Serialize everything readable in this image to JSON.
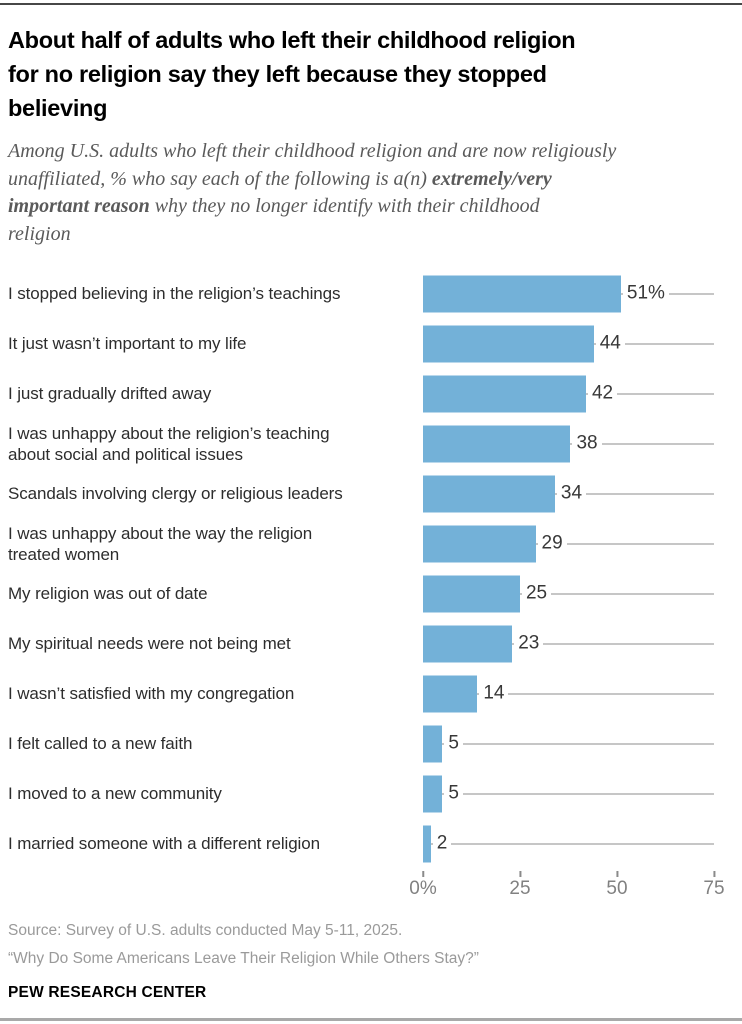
{
  "chart_data": {
    "type": "bar",
    "orientation": "horizontal",
    "title": "About half of adults who left their childhood religion\nfor no religion say they left because they stopped\nbelieving",
    "subtitle": "Among U.S. adults who left their childhood religion and are now religiously\nunaffiliated, % who say each of the following is a(n) **extremely/very**\n**important reason** why they no longer identify with their childhood\nreligion",
    "categories": [
      "I stopped believing in the religion’s teachings",
      "It just wasn’t important to my life",
      "I just gradually drifted away",
      "I was unhappy about the religion’s teaching\nabout social and political issues",
      "Scandals involving clergy or religious leaders",
      "I was unhappy about the way the religion\ntreated women",
      "My religion was out of date",
      "My spiritual needs were not being met",
      "I wasn’t satisfied with my congregation",
      "I felt called to a new faith",
      "I moved to a new community",
      "I married someone with a different religion"
    ],
    "values": [
      51,
      44,
      42,
      38,
      34,
      29,
      25,
      23,
      14,
      5,
      5,
      2
    ],
    "value_labels": [
      "51%",
      "44",
      "42",
      "38",
      "34",
      "29",
      "25",
      "23",
      "14",
      "5",
      "5",
      "2"
    ],
    "xlabel": "",
    "ylabel": "",
    "xlim": [
      0,
      75
    ],
    "x_tick_values": [
      0,
      25,
      50,
      75
    ],
    "x_ticks": [
      "0%",
      "25",
      "50",
      "75"
    ],
    "grid": "row-gridlines",
    "legend": false,
    "bar_color": "#73b1d8",
    "gridline_color": "#c6c6c6"
  },
  "footer": {
    "source_line1": "Source: Survey of U.S. adults conducted May 5-11, 2025.",
    "source_line2": "“Why Do Some Americans Leave Their Religion While Others Stay?”",
    "brand": "PEW RESEARCH CENTER"
  }
}
